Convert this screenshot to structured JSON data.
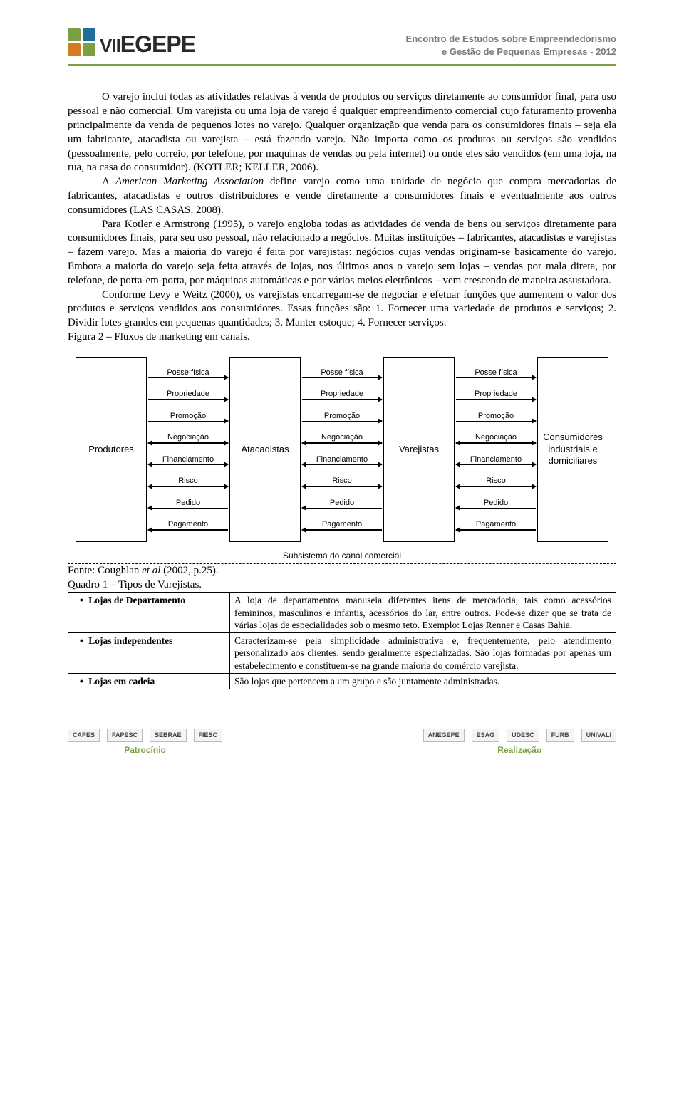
{
  "header": {
    "logo_vii": "VII",
    "logo_text": "EGEPE",
    "logo_colors": {
      "tl": "#7aa043",
      "tr": "#1f6f9a",
      "bl": "#d47a1f",
      "br": "#7aa043"
    },
    "line1": "Encontro de Estudos sobre Empreendedorismo",
    "line2": "e Gestão de Pequenas Empresas - 2012"
  },
  "paragraphs": {
    "p1": "O varejo inclui todas as atividades relativas à venda de produtos ou serviços diretamente ao consumidor final, para uso pessoal e não comercial. Um varejista ou uma loja de varejo é qualquer empreendimento comercial cujo faturamento provenha principalmente da venda de pequenos lotes no varejo. Qualquer organização que venda para os consumidores finais – seja ela um fabricante, atacadista ou varejista – está fazendo varejo. Não importa como os produtos ou serviços são vendidos (pessoalmente, pelo correio, por telefone, por maquinas de vendas ou pela internet) ou onde eles são vendidos (em uma loja, na rua, na casa do consumidor). (KOTLER; KELLER, 2006).",
    "p2_a": "A ",
    "p2_i": "American Marketing Association",
    "p2_b": " define varejo como uma unidade de negócio que compra mercadorias de fabricantes, atacadistas e outros distribuidores e vende diretamente a consumidores finais e eventualmente aos outros consumidores (LAS CASAS, 2008).",
    "p3": "Para Kotler e Armstrong (1995), o varejo engloba todas as atividades de venda de bens ou serviços diretamente para consumidores finais, para seu uso pessoal, não relacionado a negócios. Muitas instituições – fabricantes, atacadistas e varejistas – fazem varejo. Mas a maioria do varejo é feita por varejistas: negócios cujas vendas originam-se basicamente do varejo. Embora a maioria do varejo seja feita através de lojas, nos últimos anos o varejo sem lojas – vendas por mala direta, por telefone, de porta-em-porta, por máquinas automáticas e por vários meios eletrônicos – vem crescendo de maneira assustadora.",
    "p4": "Conforme Levy e Weitz (2000), os varejistas encarregam-se de negociar e efetuar funções que aumentem o valor dos produtos e serviços vendidos aos consumidores. Essas funções são: 1. Fornecer uma variedade de produtos e serviços; 2. Dividir lotes grandes em pequenas quantidades; 3. Manter estoque; 4. Fornecer serviços."
  },
  "figure": {
    "caption": "Figura 2 – Fluxos de marketing em canais.",
    "source_a": "Fonte: Coughlan ",
    "source_i": "et al",
    "source_b": " (2002, p.25).",
    "nodes": [
      "Produtores",
      "Atacadistas",
      "Varejistas",
      "Consumidores industriais e domiciliares"
    ],
    "flows": [
      {
        "label": "Posse física",
        "dir": "right"
      },
      {
        "label": "Propriedade",
        "dir": "right"
      },
      {
        "label": "Promoção",
        "dir": "right"
      },
      {
        "label": "Negociação",
        "dir": "both"
      },
      {
        "label": "Financiamento",
        "dir": "both"
      },
      {
        "label": "Risco",
        "dir": "both"
      },
      {
        "label": "Pedido",
        "dir": "left"
      },
      {
        "label": "Pagamento",
        "dir": "left"
      }
    ],
    "sub_caption": "Subsistema do canal comercial"
  },
  "quadro": {
    "caption": "Quadro 1 – Tipos de Varejistas.",
    "rows": [
      {
        "label": "Lojas de Departamento",
        "desc": "A loja de departamentos manuseia diferentes itens de mercadoria, tais como acessórios femininos, masculinos e infantis, acessórios do lar, entre outros. Pode-se dizer que se trata de várias lojas de especialidades sob o mesmo teto. Exemplo: Lojas Renner e Casas Bahia."
      },
      {
        "label": "Lojas independentes",
        "desc": "Caracterizam-se pela simplicidade administrativa e, frequentemente, pelo atendimento personalizado aos clientes, sendo geralmente especializadas. São lojas formadas por apenas um estabelecimento e constituem-se na grande maioria do comércio varejista."
      },
      {
        "label": "Lojas em cadeia",
        "desc": "São lojas que pertencem a um grupo e são juntamente administradas."
      }
    ]
  },
  "footer": {
    "left_label": "Patrocínio",
    "right_label": "Realização",
    "left_logos": [
      "CAPES",
      "FAPESC",
      "SEBRAE",
      "FIESC"
    ],
    "right_logos": [
      "ANEGEPE",
      "ESAG",
      "UDESC",
      "FURB",
      "UNIVALI"
    ]
  }
}
